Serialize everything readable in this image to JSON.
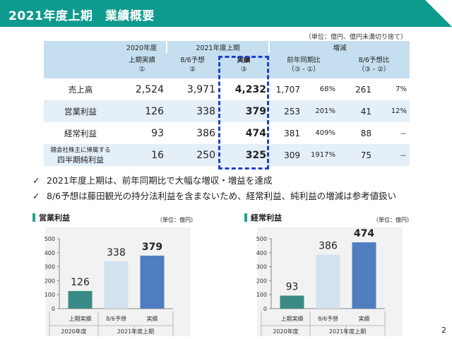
{
  "header": {
    "title": "2021年度上期　業績概要"
  },
  "table": {
    "unit_note": "（単位：億円、億円未満切り捨て）",
    "header_row1": {
      "y2020": "2020年度",
      "y2021": "2021年度上期",
      "change": "増減"
    },
    "header_row2": {
      "h1_line1": "上期実績",
      "h1_line2": "①",
      "h2_line1": "8/6予想",
      "h2_line2": "②",
      "h3_line1": "実績",
      "h3_line2": "③",
      "h4_line1": "前年同期比",
      "h4_line2": "（③ - ①）",
      "h5_line1": "8/6予想比",
      "h5_line2": "（③ - ②）"
    },
    "rows": [
      {
        "label": "売上高",
        "v1": "2,524",
        "v2": "3,971",
        "v3": "4,232",
        "v4": "1,707",
        "v5": "68%",
        "v6": "261",
        "v7": "7%"
      },
      {
        "label": "営業利益",
        "v1": "126",
        "v2": "338",
        "v3": "379",
        "v4": "253",
        "v5": "201%",
        "v6": "41",
        "v7": "12%"
      },
      {
        "label": "経常利益",
        "v1": "93",
        "v2": "386",
        "v3": "474",
        "v4": "381",
        "v5": "409%",
        "v6": "88",
        "v7": "－"
      },
      {
        "label1": "親会社株主に帰属する",
        "label2": "四半期純利益",
        "v1": "16",
        "v2": "250",
        "v3": "325",
        "v4": "309",
        "v5": "1917%",
        "v6": "75",
        "v7": "－"
      }
    ]
  },
  "bullets": [
    "2021年度上期は、前年同期比で大幅な増収・増益を達成",
    "8/6予想は藤田観光の持分法利益を含まないため、経常利益、純利益の増減は参考値扱い"
  ],
  "charts": {
    "left_title": "営業利益",
    "right_title": "経常利益",
    "unit": "（単位：億円）",
    "group_left": "2020年度",
    "group_right": "2021年度上期"
  },
  "chart_data": [
    {
      "type": "bar",
      "title": "営業利益",
      "categories": [
        "上期実績",
        "8/6予想",
        "実績"
      ],
      "values": [
        126,
        338,
        379
      ],
      "colors": [
        "#3a8a85",
        "#d4e1ef",
        "#4f7ec0"
      ],
      "ylim": [
        0,
        500
      ],
      "yticks": [
        0,
        100,
        200,
        300,
        400,
        500
      ],
      "groups": [
        "2020年度",
        "2021年度上期"
      ],
      "ylabel": "",
      "xlabel": ""
    },
    {
      "type": "bar",
      "title": "経常利益",
      "categories": [
        "上期実績",
        "8/6予想",
        "実績"
      ],
      "values": [
        93,
        386,
        474
      ],
      "colors": [
        "#3a8a85",
        "#d4e1ef",
        "#4f7ec0"
      ],
      "ylim": [
        0,
        500
      ],
      "yticks": [
        0,
        100,
        200,
        300,
        400,
        500
      ],
      "groups": [
        "2020年度",
        "2021年度上期"
      ],
      "ylabel": "",
      "xlabel": ""
    }
  ],
  "page_number": "2",
  "colors": {
    "header_bg": "#0f9a8e",
    "table_header": "#c5dff0",
    "row_shade": "#e4eff8",
    "highlight_border": "#1f3fd4"
  }
}
